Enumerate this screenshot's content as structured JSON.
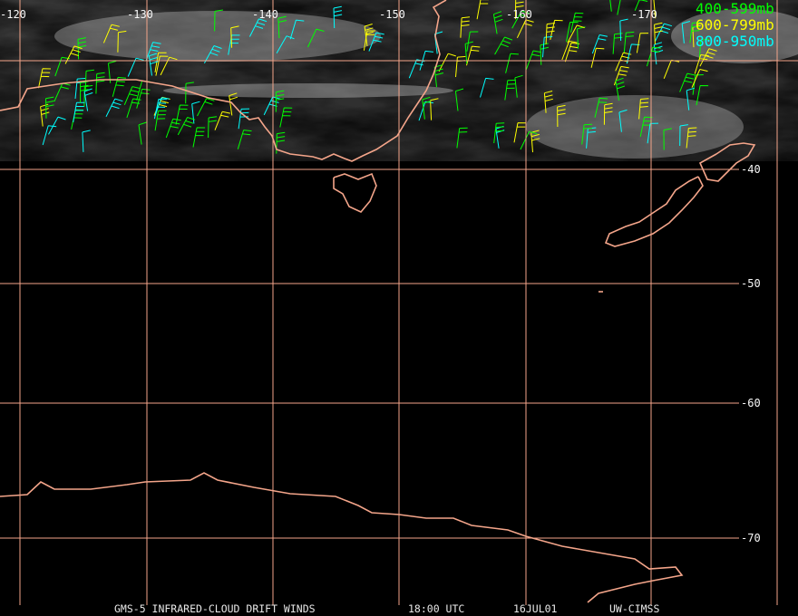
{
  "map": {
    "longitude_labels": [
      "-120",
      "-130",
      "-140",
      "-150",
      "-160",
      "-170"
    ],
    "latitude_labels": [
      "-40",
      "-50",
      "-60",
      "-70"
    ]
  },
  "legend": [
    "400-599mb",
    "600-799mb",
    "800-950mb"
  ],
  "footer": [
    "GMS-5 INFRARED-CLOUD DRIFT WINDS",
    "18:00 UTC",
    "16JUL01",
    "UW-CIMSS"
  ]
}
